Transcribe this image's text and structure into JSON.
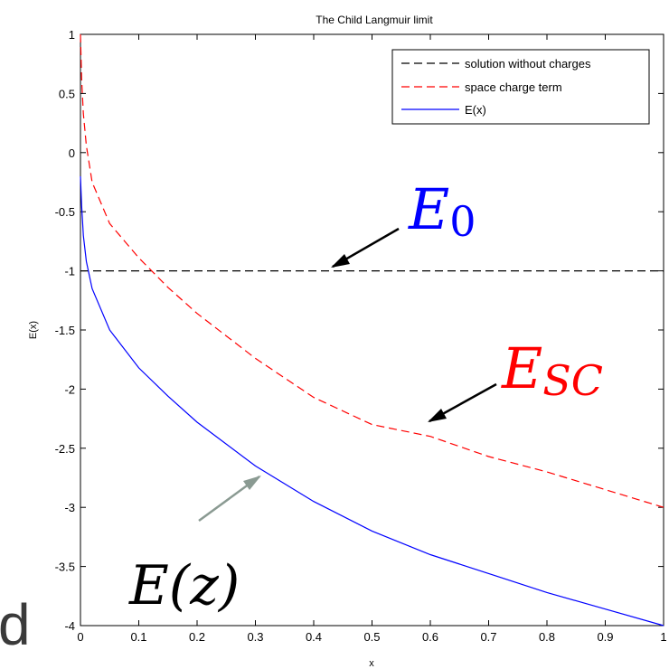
{
  "chart_data": {
    "type": "line",
    "title": "The Child Langmuir limit",
    "xlabel": "x",
    "ylabel": "E(x)",
    "xlim": [
      0,
      1
    ],
    "ylim": [
      -4,
      1
    ],
    "xticks": [
      0,
      0.1,
      0.2,
      0.3,
      0.4,
      0.5,
      0.6,
      0.7,
      0.8,
      0.9,
      1
    ],
    "xtick_labels": [
      "0",
      "0.1",
      "0.2",
      "0.3",
      "0.4",
      "0.5",
      "0.6",
      "0.7",
      "0.8",
      "0.9",
      "1"
    ],
    "yticks": [
      1,
      0.5,
      0,
      -0.5,
      -1,
      -1.5,
      -2,
      -2.5,
      -3,
      -3.5,
      -4
    ],
    "ytick_labels": [
      "1",
      "0.5",
      "0",
      "-0.5",
      "-1",
      "-1.5",
      "-2",
      "-2.5",
      "-3",
      "-3.5",
      "-4"
    ],
    "grid": false,
    "legend_position": "top-right",
    "series": [
      {
        "name": "solution without charges",
        "color": "#000000",
        "dash": "dashed",
        "x": [
          0,
          1
        ],
        "y": [
          -1,
          -1
        ]
      },
      {
        "name": "space charge term",
        "color": "#ff0000",
        "dash": "dashed",
        "x": [
          0.0,
          0.002,
          0.005,
          0.01,
          0.02,
          0.05,
          0.1,
          0.15,
          0.2,
          0.3,
          0.4,
          0.5,
          0.6,
          0.7,
          0.8,
          0.9,
          1.0
        ],
        "y": [
          1.0,
          0.62,
          0.33,
          0.06,
          -0.25,
          -0.6,
          -0.89,
          -1.14,
          -1.36,
          -1.74,
          -2.07,
          -2.3,
          -2.4,
          -2.57,
          -2.7,
          -2.85,
          -3.0
        ]
      },
      {
        "name": "E(x)",
        "color": "#0000ff",
        "dash": "solid",
        "x": [
          0.0,
          0.002,
          0.005,
          0.01,
          0.02,
          0.05,
          0.1,
          0.15,
          0.2,
          0.3,
          0.4,
          0.5,
          0.6,
          0.7,
          0.8,
          0.9,
          1.0
        ],
        "y": [
          -0.2,
          -0.45,
          -0.7,
          -0.92,
          -1.15,
          -1.5,
          -1.82,
          -2.06,
          -2.28,
          -2.65,
          -2.95,
          -3.2,
          -3.4,
          -3.56,
          -3.72,
          -3.86,
          -4.0
        ]
      }
    ]
  },
  "annotations": [
    {
      "id": "e0",
      "main": "E",
      "sub": "0",
      "color": "#0000ff"
    },
    {
      "id": "esc",
      "main": "E",
      "sub": "SC",
      "color": "#ff0000"
    },
    {
      "id": "ez",
      "text": "E(z)",
      "color": "#000000"
    }
  ],
  "stray_text": "d"
}
